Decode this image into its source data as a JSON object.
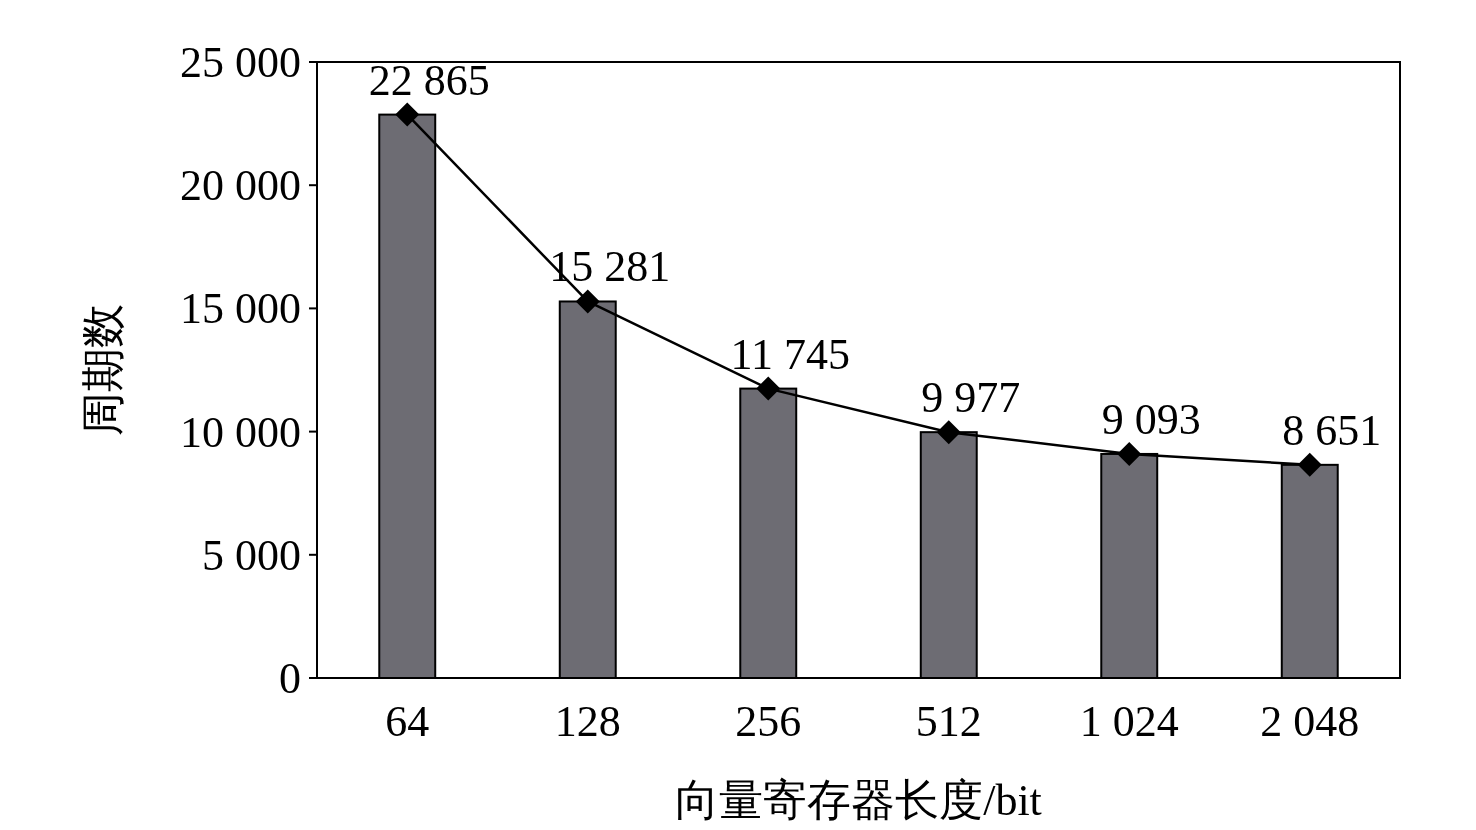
{
  "chart_data": {
    "type": "bar",
    "xlabel": "向量寄存器长度/bit",
    "ylabel": "周期数",
    "categories": [
      "64",
      "128",
      "256",
      "512",
      "1 024",
      "2 048"
    ],
    "series": [
      {
        "color": "#6d6c73",
        "values": [
          22865,
          15281,
          11745,
          9977,
          9093,
          8651
        ]
      },
      {
        "type": "line",
        "color": "#000000",
        "marker": "diamond",
        "values": [
          22865,
          15281,
          11745,
          9977,
          9093,
          8651
        ],
        "value_labels": [
          "22 865",
          "15 281",
          "11 745",
          "9 977",
          "9 093",
          "8 651"
        ]
      }
    ],
    "ylim": [
      0,
      25000
    ],
    "yticks": [
      0,
      {
        "value": 5000,
        "label": "5 000"
      },
      {
        "value": 10000,
        "label": "10 000"
      },
      {
        "value": 15000,
        "label": "15 000"
      },
      {
        "value": 20000,
        "label": "20 000"
      },
      {
        "value": 25000,
        "label": "25 000"
      }
    ]
  }
}
